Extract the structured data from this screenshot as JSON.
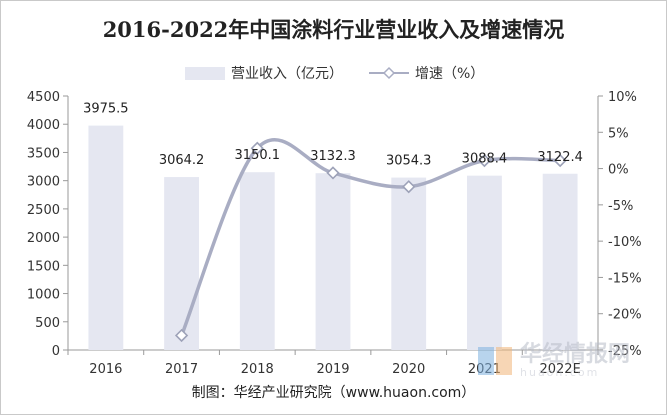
{
  "page": {
    "title": "2016-2022年中国涂料行业营业收入及增速情况",
    "source": "制图：华经产业研究院（www.huaon.com）",
    "watermark_main": "华经情报网",
    "watermark_url": "huaon.com"
  },
  "chart_data": {
    "type": "bar",
    "title": "2016-2022年中国涂料行业营业收入及增速情况",
    "categories": [
      "2016",
      "2017",
      "2018",
      "2019",
      "2020",
      "2021",
      "2022E"
    ],
    "series": [
      {
        "name": "营业收入（亿元）",
        "type": "bar",
        "axis": "left",
        "color": "#e5e7f1",
        "values": [
          3975.5,
          3064.2,
          3150.1,
          3132.3,
          3054.3,
          3088.4,
          3122.4
        ],
        "labels": [
          "3975.5",
          "3064.2",
          "3150.1",
          "3132.3",
          "3054.3",
          "3088.4",
          "3122.4"
        ]
      },
      {
        "name": "增速（%）",
        "type": "line",
        "axis": "right",
        "color": "#a9adc3",
        "smooth": true,
        "marker": "diamond",
        "values": [
          null,
          -23.0,
          2.8,
          -0.6,
          -2.5,
          1.1,
          1.1
        ]
      }
    ],
    "y_left": {
      "min": 0,
      "max": 4500,
      "ticks": [
        0,
        500,
        1000,
        1500,
        2000,
        2500,
        3000,
        3500,
        4000,
        4500
      ],
      "tick_labels": [
        "0",
        "500",
        "1000",
        "1500",
        "2000",
        "2500",
        "3000",
        "3500",
        "4000",
        "4500"
      ]
    },
    "y_right": {
      "min": -25,
      "max": 10,
      "ticks": [
        -25,
        -20,
        -15,
        -10,
        -5,
        0,
        5,
        10
      ],
      "tick_labels": [
        "-25%",
        "-20%",
        "-15%",
        "-10%",
        "-5%",
        "0%",
        "5%",
        "10%"
      ]
    },
    "legend": "top",
    "grid": false
  }
}
